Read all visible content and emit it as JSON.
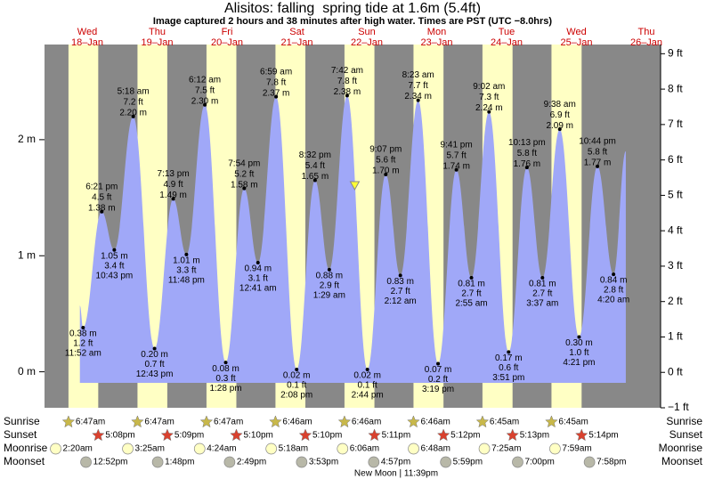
{
  "chart_data": {
    "type": "area",
    "title": "Alisitos: falling  spring tide at 1.6m (5.4ft)",
    "subtitle": "Image captured 2 hours and 38 minutes after high water. Times are PST (UTC −8.0hrs)",
    "days": [
      {
        "name": "Wed",
        "date": "18–Jan"
      },
      {
        "name": "Thu",
        "date": "19–Jan"
      },
      {
        "name": "Fri",
        "date": "20–Jan"
      },
      {
        "name": "Sat",
        "date": "21–Jan"
      },
      {
        "name": "Sun",
        "date": "22–Jan"
      },
      {
        "name": "Mon",
        "date": "23–Jan"
      },
      {
        "name": "Tue",
        "date": "24–Jan"
      },
      {
        "name": "Wed",
        "date": "25–Jan"
      },
      {
        "name": "Thu",
        "date": "26–Jan"
      }
    ],
    "xlim": [
      "17-Jan 22:27",
      "26-Jan 20:42"
    ],
    "ylim": [
      -0.31,
      2.82
    ],
    "yticks": [
      {
        "value": 0,
        "label": "0 m"
      },
      {
        "value": 1,
        "label": "1 m"
      },
      {
        "value": 2,
        "label": "2 m"
      }
    ],
    "y2lim": [
      -1,
      9.26
    ],
    "y2ticks": [
      {
        "value": -1,
        "label": "−1 ft"
      },
      {
        "value": 0,
        "label": "0 ft"
      },
      {
        "value": 1,
        "label": "1 ft"
      },
      {
        "value": 2,
        "label": "2 ft"
      },
      {
        "value": 3,
        "label": "3 ft"
      },
      {
        "value": 4,
        "label": "4 ft"
      },
      {
        "value": 5,
        "label": "5 ft"
      },
      {
        "value": 6,
        "label": "6 ft"
      },
      {
        "value": 7,
        "label": "7 ft"
      },
      {
        "value": 8,
        "label": "8 ft"
      },
      {
        "value": 9,
        "label": "9 ft"
      }
    ],
    "color": "#a0a8f8",
    "x": [
      "18-Jan 10:45",
      "18-Jan 11:52",
      "18-Jan 18:21",
      "18-Jan 22:43",
      "19-Jan 05:18",
      "19-Jan 12:43",
      "19-Jan 19:13",
      "19-Jan 23:48",
      "20-Jan 06:12",
      "20-Jan 13:28",
      "20-Jan 19:54",
      "21-Jan 00:41",
      "21-Jan 06:59",
      "21-Jan 14:08",
      "21-Jan 20:32",
      "22-Jan 01:29",
      "22-Jan 07:42",
      "22-Jan 14:44",
      "22-Jan 21:07",
      "23-Jan 02:12",
      "23-Jan 08:23",
      "23-Jan 15:19",
      "23-Jan 21:41",
      "24-Jan 02:55",
      "24-Jan 09:02",
      "24-Jan 15:51",
      "24-Jan 22:13",
      "25-Jan 03:37",
      "25-Jan 09:38",
      "25-Jan 16:21",
      "25-Jan 22:44",
      "26-Jan 04:20",
      "26-Jan 08:36"
    ],
    "values": [
      0.57,
      0.38,
      1.38,
      1.05,
      2.2,
      0.2,
      1.49,
      1.01,
      2.3,
      0.08,
      1.58,
      0.94,
      2.37,
      0.02,
      1.65,
      0.88,
      2.38,
      0.02,
      1.7,
      0.83,
      2.34,
      0.07,
      1.74,
      0.81,
      2.24,
      0.17,
      1.76,
      0.81,
      2.09,
      0.3,
      1.77,
      0.84,
      1.9
    ],
    "value_labels": [
      null,
      "0.38 m",
      "1.38 m",
      "1.05 m",
      "2.20 m",
      "0.20 m",
      "1.49 m",
      "1.01 m",
      "2.30 m",
      "0.08 m",
      "1.58 m",
      "0.94 m",
      "2.37 m",
      "0.02 m",
      "1.65 m",
      "0.88 m",
      "2.38 m",
      "0.02 m",
      "1.70 m",
      "0.83 m",
      "2.34 m",
      "0.07 m",
      "1.74 m",
      "0.81 m",
      "2.24 m",
      "0.17 m",
      "1.76 m",
      "0.81 m",
      "2.09 m",
      "0.30 m",
      "1.77 m",
      "0.84 m",
      null
    ],
    "ft_labels": [
      null,
      "1.2 ft",
      "4.5 ft",
      "3.4 ft",
      "7.2 ft",
      "0.7 ft",
      "4.9 ft",
      "3.3 ft",
      "7.5 ft",
      "0.3 ft",
      "5.2 ft",
      "3.1 ft",
      "7.8 ft",
      "0.1 ft",
      "5.4 ft",
      "2.9 ft",
      "7.8 ft",
      "0.1 ft",
      "5.6 ft",
      "2.7 ft",
      "7.7 ft",
      "0.2 ft",
      "5.7 ft",
      "2.7 ft",
      "7.3 ft",
      "0.6 ft",
      "5.8 ft",
      "2.7 ft",
      "6.9 ft",
      "1.0 ft",
      "5.8 ft",
      "2.8 ft",
      null
    ],
    "time_labels": [
      null,
      "11:52 am",
      "6:21 pm",
      "10:43 pm",
      "5:18 am",
      "12:43 pm",
      "7:13 pm",
      "11:48 pm",
      "6:12 am",
      "1:28 pm",
      "7:54 pm",
      "12:41 am",
      "6:59 am",
      "2:08 pm",
      "8:32 pm",
      "1:29 am",
      "7:42 am",
      "2:44 pm",
      "9:07 pm",
      "2:12 am",
      "8:23 am",
      "3:19 pm",
      "9:41 pm",
      "2:55 am",
      "9:02 am",
      "3:51 pm",
      "10:13 pm",
      "3:37 am",
      "9:38 am",
      "4:21 pm",
      "10:44 pm",
      "4:20 am",
      null
    ],
    "now": {
      "x": "22-Jan 10:20",
      "value": 1.6
    },
    "rows": [
      {
        "label": "Sunrise",
        "events": [
          {
            "x": "18-Jan 06:47",
            "label": "6:47am"
          },
          {
            "x": "19-Jan 06:47",
            "label": "6:47am"
          },
          {
            "x": "20-Jan 06:47",
            "label": "6:47am"
          },
          {
            "x": "21-Jan 06:46",
            "label": "6:46am"
          },
          {
            "x": "22-Jan 06:46",
            "label": "6:46am"
          },
          {
            "x": "23-Jan 06:46",
            "label": "6:46am"
          },
          {
            "x": "24-Jan 06:45",
            "label": "6:45am"
          },
          {
            "x": "25-Jan 06:45",
            "label": "6:45am"
          }
        ]
      },
      {
        "label": "Sunset",
        "events": [
          {
            "x": "18-Jan 17:08",
            "label": "5:08pm"
          },
          {
            "x": "19-Jan 17:09",
            "label": "5:09pm"
          },
          {
            "x": "20-Jan 17:10",
            "label": "5:10pm"
          },
          {
            "x": "21-Jan 17:10",
            "label": "5:10pm"
          },
          {
            "x": "22-Jan 17:11",
            "label": "5:11pm"
          },
          {
            "x": "23-Jan 17:12",
            "label": "5:12pm"
          },
          {
            "x": "24-Jan 17:13",
            "label": "5:13pm"
          },
          {
            "x": "25-Jan 17:14",
            "label": "5:14pm"
          }
        ]
      },
      {
        "label": "Moonrise",
        "events": [
          {
            "x": "18-Jan 02:20",
            "label": "2:20am"
          },
          {
            "x": "19-Jan 03:25",
            "label": "3:25am"
          },
          {
            "x": "20-Jan 04:24",
            "label": "4:24am"
          },
          {
            "x": "21-Jan 05:18",
            "label": "5:18am"
          },
          {
            "x": "22-Jan 06:06",
            "label": "6:06am"
          },
          {
            "x": "23-Jan 06:48",
            "label": "6:48am"
          },
          {
            "x": "24-Jan 07:25",
            "label": "7:25am"
          },
          {
            "x": "25-Jan 07:59",
            "label": "7:59am"
          }
        ]
      },
      {
        "label": "Moonset",
        "events": [
          {
            "x": "18-Jan 12:52",
            "label": "12:52pm"
          },
          {
            "x": "19-Jan 13:48",
            "label": "1:48pm"
          },
          {
            "x": "20-Jan 14:49",
            "label": "2:49pm"
          },
          {
            "x": "21-Jan 15:53",
            "label": "3:53pm"
          },
          {
            "x": "22-Jan 16:57",
            "label": "4:57pm"
          },
          {
            "x": "23-Jan 17:59",
            "label": "5:59pm"
          },
          {
            "x": "24-Jan 19:00",
            "label": "7:00pm"
          },
          {
            "x": "25-Jan 19:58",
            "label": "7:58pm"
          }
        ]
      }
    ],
    "moon_phase": "New Moon | 11:39pm"
  }
}
